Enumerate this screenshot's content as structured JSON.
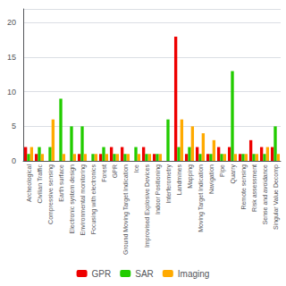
{
  "chart_data": {
    "type": "bar",
    "categories": [
      "Archeological",
      "Civilian Traffic",
      "Compressive sensing",
      "Earth surface",
      "Electronic system design",
      "Environmental monitoring",
      "Focusing with electronics",
      "Forest",
      "GPR",
      "Ground Moving Target Indication",
      "Ice",
      "Improvised Explosive Devices",
      "Indoor Positioning",
      "Interferometry",
      "Landmines",
      "Mapping",
      "Moving Target Indication",
      "Navigation",
      "Pipe",
      "Quarry",
      "Remote sensing",
      "Risk assessment",
      "Sense and avoidance",
      "Singular Value Decomp"
    ],
    "series": [
      {
        "name": "GPR",
        "color": "#ee0000",
        "values": [
          2,
          1,
          0,
          0,
          0,
          1,
          0,
          1,
          2,
          2,
          0,
          2,
          1,
          0,
          18,
          1,
          2,
          1,
          2,
          2,
          1,
          3,
          2,
          2
        ]
      },
      {
        "name": "SAR",
        "color": "#22cc00",
        "values": [
          1,
          2,
          2,
          9,
          5,
          5,
          1,
          2,
          1,
          1,
          2,
          1,
          1,
          6,
          2,
          2,
          1,
          1,
          1,
          13,
          1,
          1,
          1,
          5
        ]
      },
      {
        "name": "Imaging",
        "color": "#ffaa00",
        "values": [
          2,
          1,
          6,
          1,
          1,
          1,
          1,
          1,
          1,
          1,
          1,
          1,
          1,
          0,
          6,
          5,
          4,
          3,
          1,
          1,
          1,
          1,
          2,
          1
        ]
      }
    ],
    "ylim": [
      0,
      22
    ],
    "yticks": [
      0,
      5,
      10,
      15,
      20
    ],
    "grid": true,
    "legend": "bottom"
  }
}
